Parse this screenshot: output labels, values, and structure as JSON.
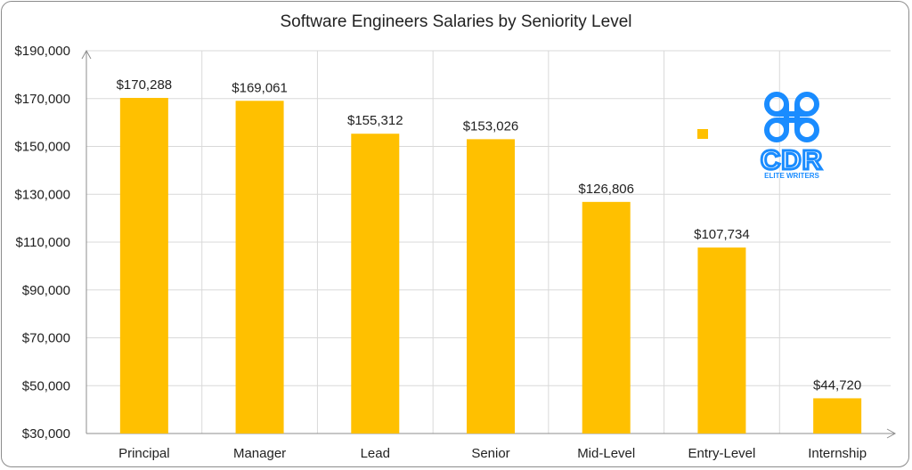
{
  "chart_data": {
    "type": "bar",
    "title": "Software Engineers Salaries by Seniority Level",
    "xlabel": "",
    "ylabel": "",
    "categories": [
      "Principal",
      "Manager",
      "Lead",
      "Senior",
      "Mid-Level",
      "Entry-Level",
      "Internship"
    ],
    "values": [
      170288,
      169061,
      155312,
      153026,
      126806,
      107734,
      44720
    ],
    "data_labels": [
      "$170,288",
      "$169,061",
      "$155,312",
      "$153,026",
      "$126,806",
      "$107,734",
      "$44,720"
    ],
    "ylim": [
      30000,
      190000
    ],
    "y_ticks": [
      30000,
      50000,
      70000,
      90000,
      110000,
      130000,
      150000,
      170000,
      190000
    ],
    "y_tick_labels": [
      "$30,000",
      "$50,000",
      "$70,000",
      "$90,000",
      "$110,000",
      "$130,000",
      "$150,000",
      "$170,000",
      "$190,000"
    ],
    "grid": true,
    "legend": "none",
    "colors": {
      "bar": "#FFC000",
      "grid": "#D9D9D9",
      "axis": "#8C8C8C",
      "logo": "#1A8CFF"
    }
  },
  "logo": {
    "name": "CDR",
    "tagline": "ELITE WRITERS"
  }
}
